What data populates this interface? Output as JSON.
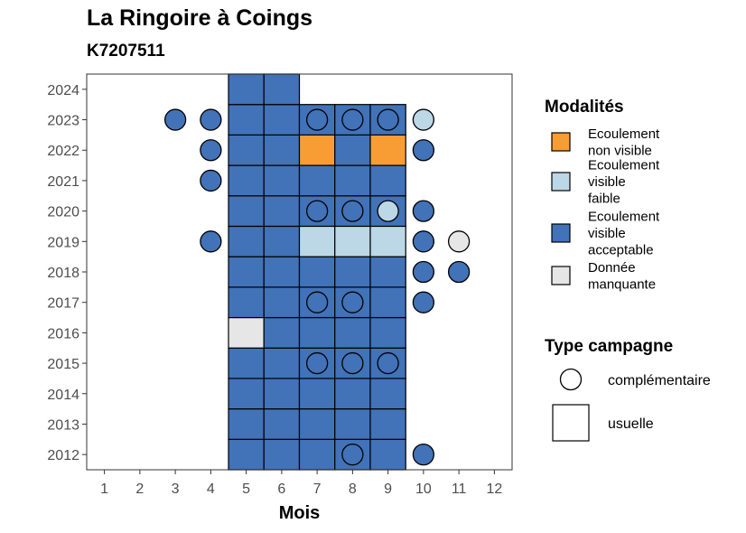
{
  "chart_data": {
    "type": "heatmap",
    "title": "La Ringoire à Coings",
    "subtitle": "K7207511",
    "xlabel": "Mois",
    "ylabel": "",
    "x_ticks": [
      1,
      2,
      3,
      4,
      5,
      6,
      7,
      8,
      9,
      10,
      11,
      12
    ],
    "y_ticks": [
      2012,
      2013,
      2014,
      2015,
      2016,
      2017,
      2018,
      2019,
      2020,
      2021,
      2022,
      2023,
      2024
    ],
    "xlim": [
      0.5,
      12.5
    ],
    "ylim": [
      2011.5,
      2024.5
    ],
    "legend_modalites": {
      "title": "Modalités",
      "items": [
        {
          "key": "nv",
          "label_lines": [
            "Ecoulement",
            "non visible"
          ],
          "color": "#F89D33"
        },
        {
          "key": "vf",
          "label_lines": [
            "Ecoulement",
            "visible",
            "faible"
          ],
          "color": "#BCD7E6"
        },
        {
          "key": "va",
          "label_lines": [
            "Ecoulement",
            "visible",
            "acceptable"
          ],
          "color": "#4272B8"
        },
        {
          "key": "dm",
          "label_lines": [
            "Donnée",
            "manquante"
          ],
          "color": "#E6E6E6"
        }
      ]
    },
    "legend_type": {
      "title": "Type campagne",
      "items": [
        {
          "key": "complementaire",
          "label": "complémentaire",
          "shape": "circle"
        },
        {
          "key": "usuelle",
          "label": "usuelle",
          "shape": "square"
        }
      ]
    },
    "usuelle": [
      {
        "month": 5,
        "year": 2012,
        "m": "va"
      },
      {
        "month": 6,
        "year": 2012,
        "m": "va"
      },
      {
        "month": 7,
        "year": 2012,
        "m": "va"
      },
      {
        "month": 8,
        "year": 2012,
        "m": "va"
      },
      {
        "month": 9,
        "year": 2012,
        "m": "va"
      },
      {
        "month": 5,
        "year": 2013,
        "m": "va"
      },
      {
        "month": 6,
        "year": 2013,
        "m": "va"
      },
      {
        "month": 7,
        "year": 2013,
        "m": "va"
      },
      {
        "month": 8,
        "year": 2013,
        "m": "va"
      },
      {
        "month": 9,
        "year": 2013,
        "m": "va"
      },
      {
        "month": 5,
        "year": 2014,
        "m": "va"
      },
      {
        "month": 6,
        "year": 2014,
        "m": "va"
      },
      {
        "month": 7,
        "year": 2014,
        "m": "va"
      },
      {
        "month": 8,
        "year": 2014,
        "m": "va"
      },
      {
        "month": 9,
        "year": 2014,
        "m": "va"
      },
      {
        "month": 5,
        "year": 2015,
        "m": "va"
      },
      {
        "month": 6,
        "year": 2015,
        "m": "va"
      },
      {
        "month": 7,
        "year": 2015,
        "m": "va"
      },
      {
        "month": 8,
        "year": 2015,
        "m": "va"
      },
      {
        "month": 9,
        "year": 2015,
        "m": "va"
      },
      {
        "month": 5,
        "year": 2016,
        "m": "dm"
      },
      {
        "month": 6,
        "year": 2016,
        "m": "va"
      },
      {
        "month": 7,
        "year": 2016,
        "m": "va"
      },
      {
        "month": 8,
        "year": 2016,
        "m": "va"
      },
      {
        "month": 9,
        "year": 2016,
        "m": "va"
      },
      {
        "month": 5,
        "year": 2017,
        "m": "va"
      },
      {
        "month": 6,
        "year": 2017,
        "m": "va"
      },
      {
        "month": 7,
        "year": 2017,
        "m": "va"
      },
      {
        "month": 8,
        "year": 2017,
        "m": "va"
      },
      {
        "month": 9,
        "year": 2017,
        "m": "va"
      },
      {
        "month": 5,
        "year": 2018,
        "m": "va"
      },
      {
        "month": 6,
        "year": 2018,
        "m": "va"
      },
      {
        "month": 7,
        "year": 2018,
        "m": "va"
      },
      {
        "month": 8,
        "year": 2018,
        "m": "va"
      },
      {
        "month": 9,
        "year": 2018,
        "m": "va"
      },
      {
        "month": 5,
        "year": 2019,
        "m": "va"
      },
      {
        "month": 6,
        "year": 2019,
        "m": "va"
      },
      {
        "month": 7,
        "year": 2019,
        "m": "vf"
      },
      {
        "month": 8,
        "year": 2019,
        "m": "vf"
      },
      {
        "month": 9,
        "year": 2019,
        "m": "vf"
      },
      {
        "month": 5,
        "year": 2020,
        "m": "va"
      },
      {
        "month": 6,
        "year": 2020,
        "m": "va"
      },
      {
        "month": 7,
        "year": 2020,
        "m": "va"
      },
      {
        "month": 8,
        "year": 2020,
        "m": "va"
      },
      {
        "month": 9,
        "year": 2020,
        "m": "va"
      },
      {
        "month": 5,
        "year": 2021,
        "m": "va"
      },
      {
        "month": 6,
        "year": 2021,
        "m": "va"
      },
      {
        "month": 7,
        "year": 2021,
        "m": "va"
      },
      {
        "month": 8,
        "year": 2021,
        "m": "va"
      },
      {
        "month": 9,
        "year": 2021,
        "m": "va"
      },
      {
        "month": 5,
        "year": 2022,
        "m": "va"
      },
      {
        "month": 6,
        "year": 2022,
        "m": "va"
      },
      {
        "month": 7,
        "year": 2022,
        "m": "nv"
      },
      {
        "month": 8,
        "year": 2022,
        "m": "va"
      },
      {
        "month": 9,
        "year": 2022,
        "m": "nv"
      },
      {
        "month": 5,
        "year": 2023,
        "m": "va"
      },
      {
        "month": 6,
        "year": 2023,
        "m": "va"
      },
      {
        "month": 7,
        "year": 2023,
        "m": "va"
      },
      {
        "month": 8,
        "year": 2023,
        "m": "va"
      },
      {
        "month": 9,
        "year": 2023,
        "m": "va"
      },
      {
        "month": 5,
        "year": 2024,
        "m": "va"
      },
      {
        "month": 6,
        "year": 2024,
        "m": "va"
      }
    ],
    "complementaire": [
      {
        "month": 8,
        "year": 2012,
        "m": "va"
      },
      {
        "month": 10,
        "year": 2012,
        "m": "va"
      },
      {
        "month": 7,
        "year": 2015,
        "m": "va"
      },
      {
        "month": 8,
        "year": 2015,
        "m": "va"
      },
      {
        "month": 9,
        "year": 2015,
        "m": "va"
      },
      {
        "month": 7,
        "year": 2017,
        "m": "va"
      },
      {
        "month": 8,
        "year": 2017,
        "m": "va"
      },
      {
        "month": 10,
        "year": 2017,
        "m": "va"
      },
      {
        "month": 10,
        "year": 2018,
        "m": "va"
      },
      {
        "month": 11,
        "year": 2018,
        "m": "va"
      },
      {
        "month": 4,
        "year": 2019,
        "m": "va"
      },
      {
        "month": 10,
        "year": 2019,
        "m": "va"
      },
      {
        "month": 11,
        "year": 2019,
        "m": "dm"
      },
      {
        "month": 7,
        "year": 2020,
        "m": "va"
      },
      {
        "month": 8,
        "year": 2020,
        "m": "va"
      },
      {
        "month": 9,
        "year": 2020,
        "m": "vf"
      },
      {
        "month": 10,
        "year": 2020,
        "m": "va"
      },
      {
        "month": 4,
        "year": 2021,
        "m": "va"
      },
      {
        "month": 4,
        "year": 2022,
        "m": "va"
      },
      {
        "month": 10,
        "year": 2022,
        "m": "va"
      },
      {
        "month": 3,
        "year": 2023,
        "m": "va"
      },
      {
        "month": 4,
        "year": 2023,
        "m": "va"
      },
      {
        "month": 7,
        "year": 2023,
        "m": "va"
      },
      {
        "month": 8,
        "year": 2023,
        "m": "va"
      },
      {
        "month": 9,
        "year": 2023,
        "m": "va"
      },
      {
        "month": 10,
        "year": 2023,
        "m": "vf"
      }
    ]
  }
}
